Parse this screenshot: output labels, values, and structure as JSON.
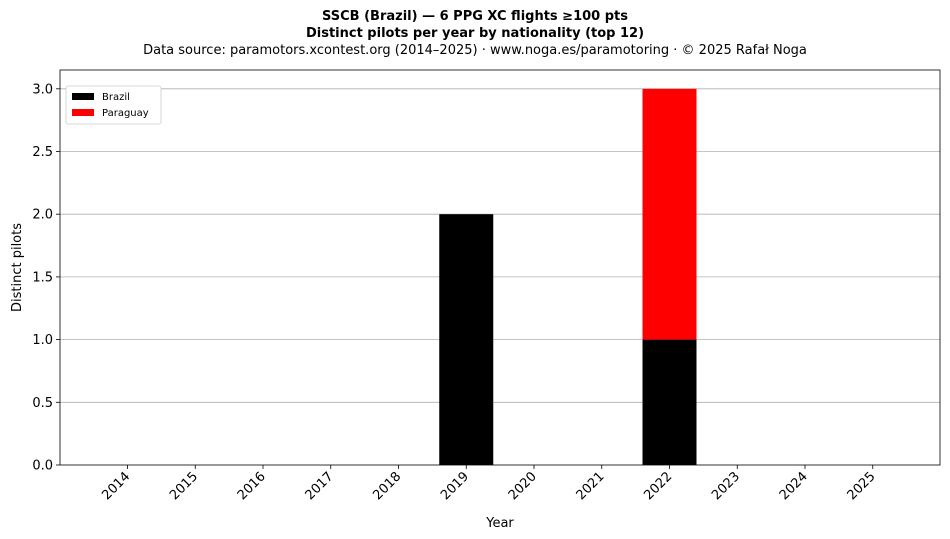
{
  "header": {
    "title_line1": "SSCB (Brazil)  —  6 PPG XC flights ≥100 pts",
    "title_line2": "Distinct pilots per year by nationality (top 12)",
    "subtitle": "Data source: paramotors.xcontest.org (2014–2025)  ·  www.noga.es/paramotoring  ·  © 2025 Rafał Noga"
  },
  "chart_data": {
    "type": "bar",
    "stacked": true,
    "categories": [
      "2014",
      "2015",
      "2016",
      "2017",
      "2018",
      "2019",
      "2020",
      "2021",
      "2022",
      "2023",
      "2024",
      "2025"
    ],
    "series": [
      {
        "name": "Brazil",
        "color": "#000000",
        "values": [
          0,
          0,
          0,
          0,
          0,
          2,
          0,
          0,
          1,
          0,
          0,
          0
        ]
      },
      {
        "name": "Paraguay",
        "color": "#ff0000",
        "values": [
          0,
          0,
          0,
          0,
          0,
          0,
          0,
          0,
          2,
          0,
          0,
          0
        ]
      }
    ],
    "xlabel": "Year",
    "ylabel": "Distinct pilots",
    "ylim": [
      0,
      3.15
    ],
    "yticks": [
      "0.0",
      "0.5",
      "1.0",
      "1.5",
      "2.0",
      "2.5",
      "3.0"
    ],
    "ytick_values": [
      0,
      0.5,
      1.0,
      1.5,
      2.0,
      2.5,
      3.0
    ],
    "grid": "y",
    "legend_position": "top-left"
  }
}
